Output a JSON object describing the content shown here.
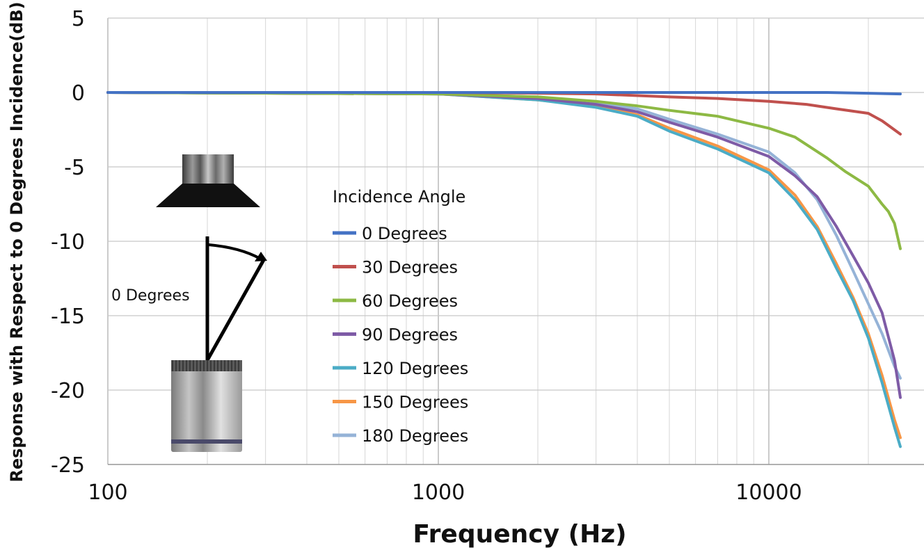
{
  "chart_data": {
    "type": "line",
    "xlabel": "Frequency (Hz)",
    "ylabel": "Response with Respect to 0 Degrees Incidence(dB)",
    "xscale": "log",
    "xlim": [
      100,
      25000
    ],
    "ylim": [
      -25,
      5
    ],
    "x_ticks": [
      100,
      1000,
      10000
    ],
    "x_tick_labels": [
      "100",
      "1000",
      "10000"
    ],
    "y_ticks": [
      5,
      0,
      -5,
      -10,
      -15,
      -20,
      -25
    ],
    "y_tick_labels": [
      "5",
      "0",
      "-5",
      "-10",
      "-15",
      "-20",
      "-25"
    ],
    "grid": true,
    "legend": {
      "title": "Incidence Angle",
      "position": "center"
    },
    "annotation": "0 Degrees",
    "series": [
      {
        "name": "0 Degrees",
        "color": "#4472C4",
        "x": [
          100,
          1000,
          5000,
          10000,
          15000,
          20000,
          25000
        ],
        "y": [
          0,
          0,
          0,
          0,
          0,
          -0.05,
          -0.1
        ]
      },
      {
        "name": "30 Degrees",
        "color": "#C0504D",
        "x": [
          100,
          1000,
          2000,
          3000,
          5000,
          7000,
          10000,
          13000,
          16000,
          20000,
          22000,
          25000
        ],
        "y": [
          0,
          0,
          -0.05,
          -0.1,
          -0.3,
          -0.4,
          -0.6,
          -0.8,
          -1.1,
          -1.4,
          -1.9,
          -2.8
        ]
      },
      {
        "name": "60 Degrees",
        "color": "#8DB944",
        "x": [
          100,
          1000,
          2000,
          3000,
          4000,
          5000,
          7000,
          10000,
          12000,
          15000,
          17000,
          20000,
          22000,
          23000,
          24000,
          25000
        ],
        "y": [
          0,
          -0.1,
          -0.3,
          -0.6,
          -0.9,
          -1.2,
          -1.6,
          -2.4,
          -3.0,
          -4.4,
          -5.3,
          -6.3,
          -7.5,
          -8.0,
          -8.8,
          -10.5
        ]
      },
      {
        "name": "90 Degrees",
        "color": "#7E5BA6",
        "x": [
          100,
          1000,
          2000,
          3000,
          4000,
          5000,
          7000,
          10000,
          12000,
          14000,
          16000,
          18000,
          20000,
          22000,
          24000,
          25000
        ],
        "y": [
          0,
          -0.1,
          -0.4,
          -0.8,
          -1.3,
          -2.0,
          -3.0,
          -4.3,
          -5.6,
          -7.0,
          -9.0,
          -11.0,
          -12.8,
          -14.8,
          -18.0,
          -20.5
        ]
      },
      {
        "name": "120 Degrees",
        "color": "#4BACC6",
        "x": [
          100,
          1000,
          2000,
          3000,
          4000,
          5000,
          7000,
          10000,
          12000,
          14000,
          16000,
          18000,
          20000,
          22000,
          24000,
          25000
        ],
        "y": [
          0,
          -0.1,
          -0.5,
          -1.0,
          -1.6,
          -2.6,
          -3.8,
          -5.4,
          -7.2,
          -9.2,
          -11.8,
          -14.0,
          -16.5,
          -19.5,
          -22.5,
          -23.8
        ]
      },
      {
        "name": "150 Degrees",
        "color": "#F79646",
        "x": [
          100,
          1000,
          2000,
          3000,
          4000,
          5000,
          7000,
          10000,
          12000,
          14000,
          16000,
          18000,
          20000,
          22000,
          24000,
          25000
        ],
        "y": [
          0,
          -0.1,
          -0.5,
          -0.9,
          -1.5,
          -2.4,
          -3.6,
          -5.2,
          -6.9,
          -9.0,
          -11.5,
          -13.8,
          -16.2,
          -19.0,
          -22.0,
          -23.2
        ]
      },
      {
        "name": "180 Degrees",
        "color": "#95B3D7",
        "x": [
          100,
          1000,
          2000,
          3000,
          4000,
          5000,
          7000,
          10000,
          12000,
          14000,
          16000,
          18000,
          20000,
          22000,
          24000,
          25000
        ],
        "y": [
          0,
          -0.1,
          -0.3,
          -0.7,
          -1.1,
          -1.8,
          -2.8,
          -4.0,
          -5.4,
          -7.2,
          -9.6,
          -12.0,
          -14.2,
          -16.2,
          -18.4,
          -19.2
        ]
      }
    ]
  }
}
